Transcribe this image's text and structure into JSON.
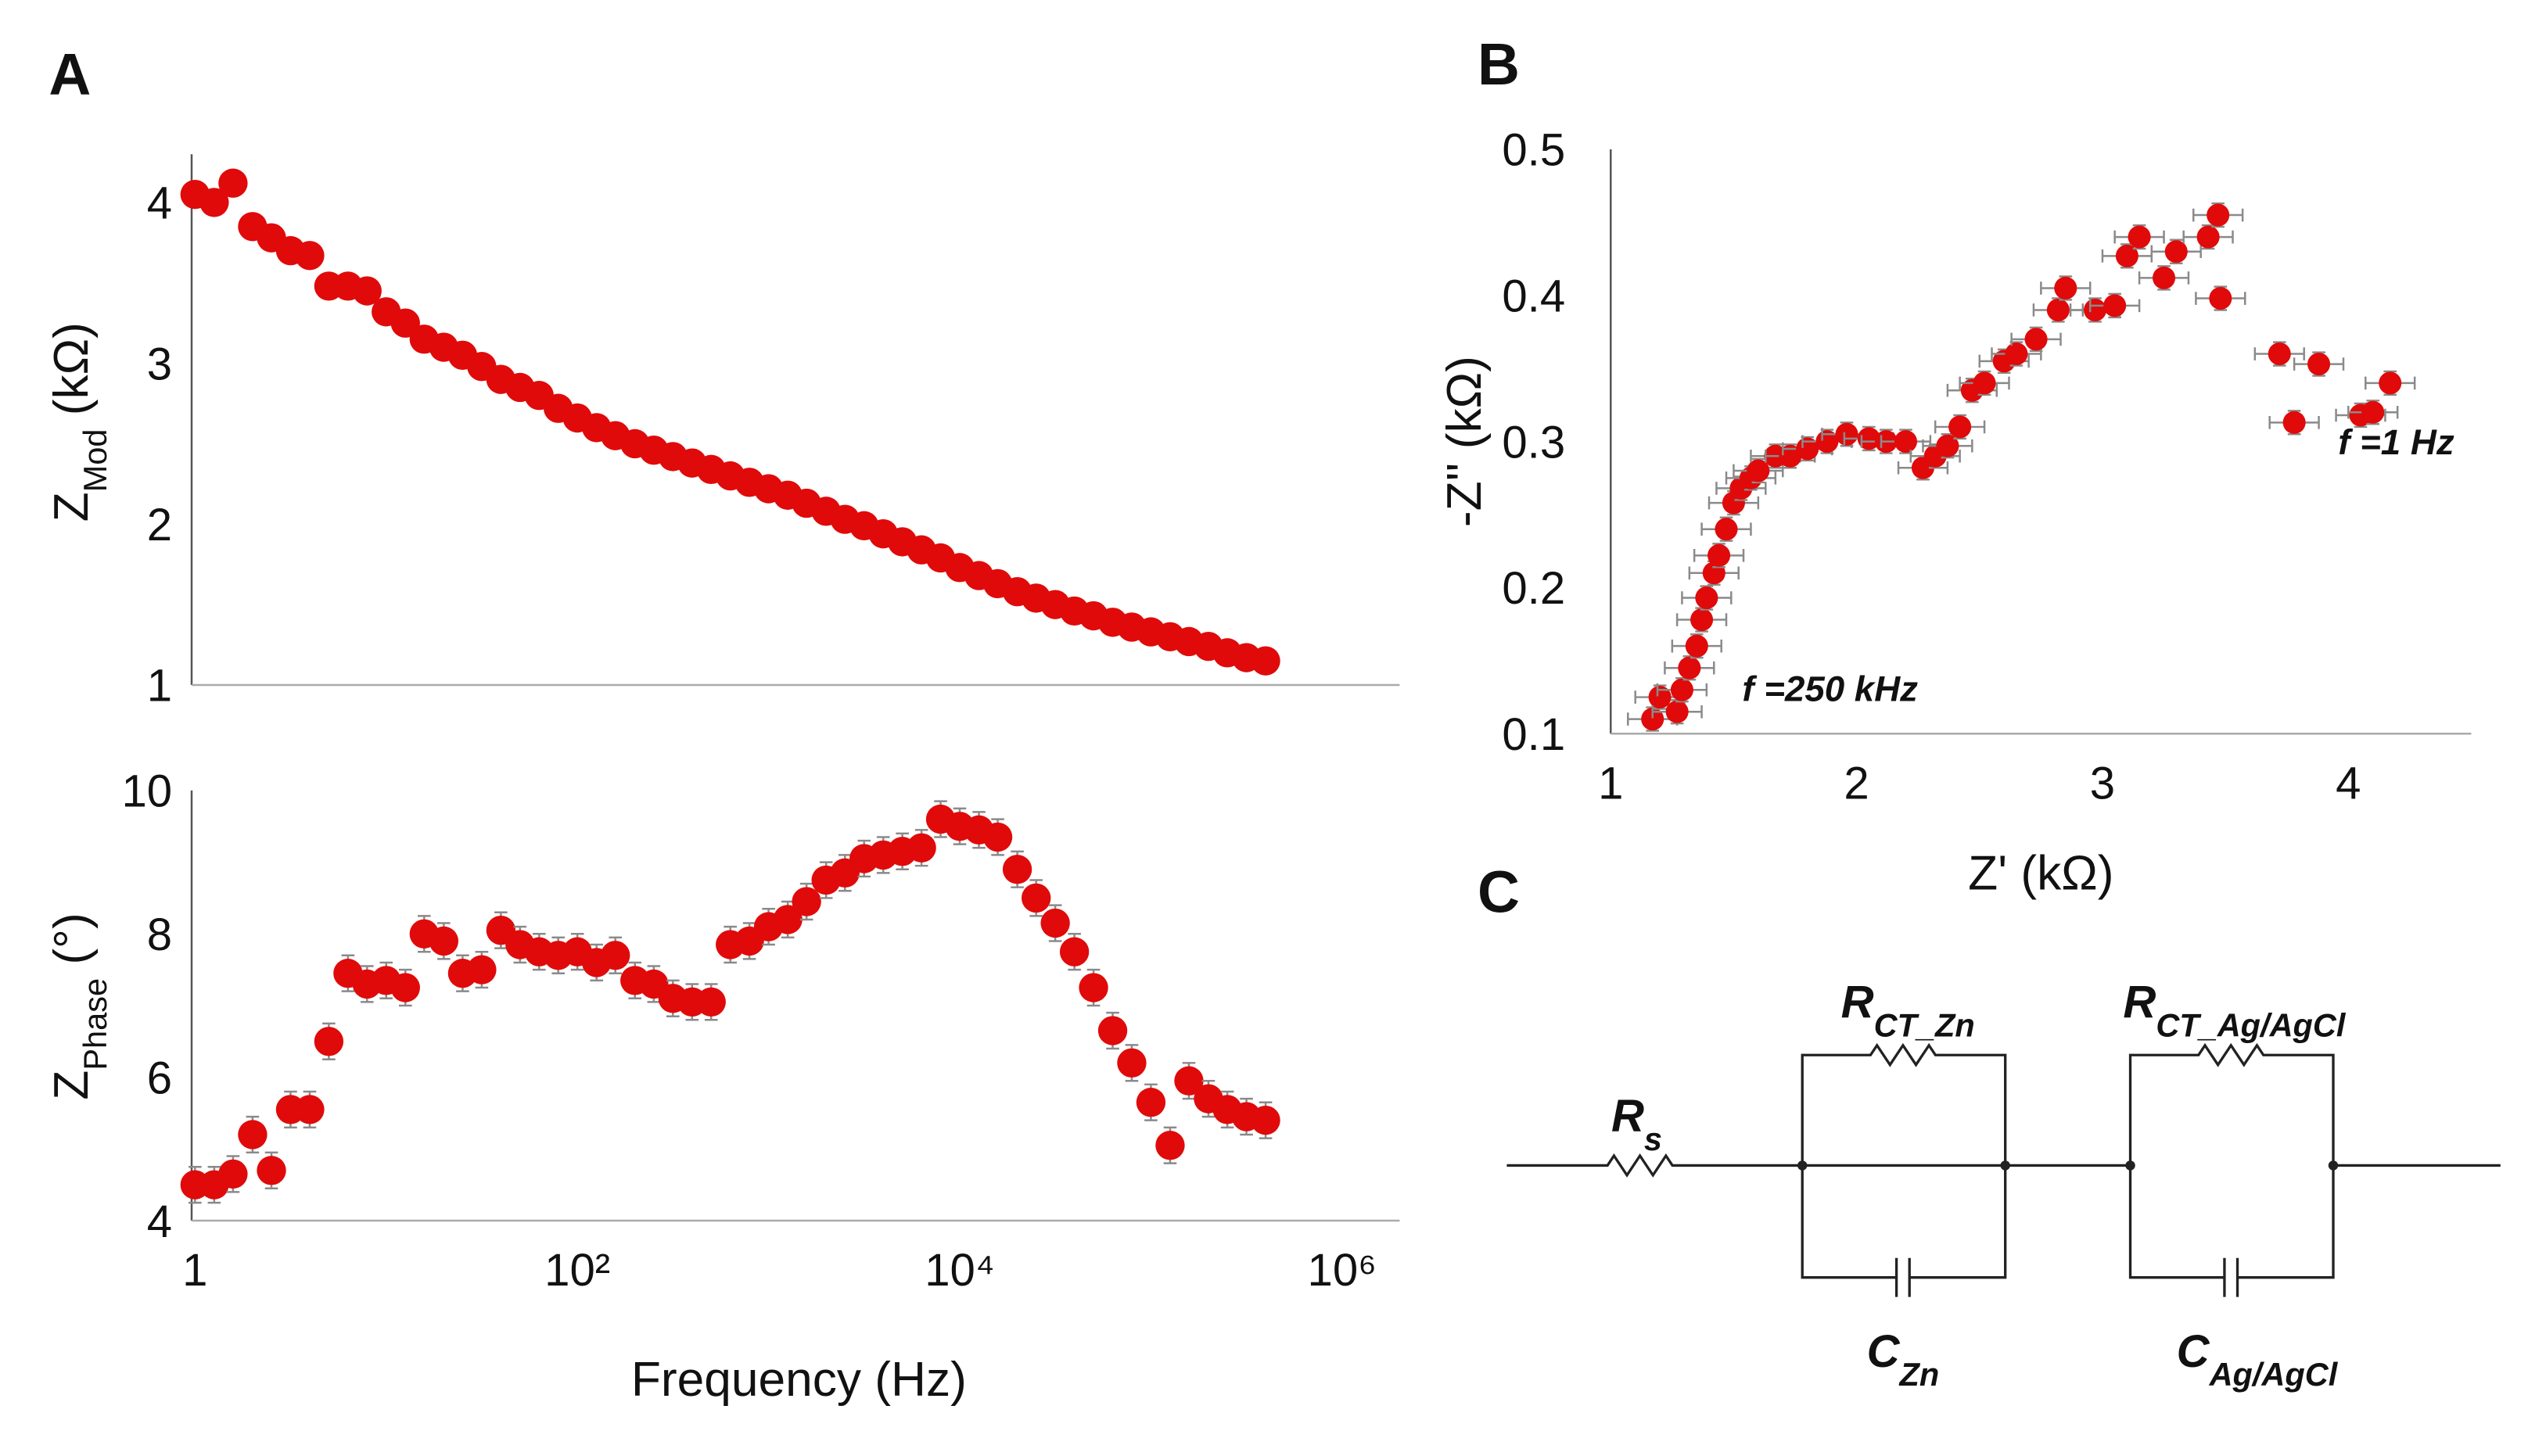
{
  "panels": [
    "A",
    "B",
    "C"
  ],
  "chart_data": [
    {
      "type": "scatter",
      "xscale": "log",
      "color": "#e00a0a",
      "ylabel": [
        "Z",
        "Mod",
        " (kΩ)"
      ],
      "x": [
        1,
        1.26,
        1.58,
        2,
        2.51,
        3.16,
        3.98,
        5.01,
        6.31,
        7.94,
        10,
        12.6,
        15.8,
        20,
        25.1,
        31.6,
        39.8,
        50.1,
        63.1,
        79.4,
        100,
        126,
        158,
        200,
        251,
        316,
        398,
        501,
        631,
        794,
        1000,
        1260,
        1580,
        2000,
        2510,
        3160,
        3980,
        5010,
        6310,
        7940,
        10000,
        12600,
        15800,
        20000,
        25100,
        31600,
        39800,
        50100,
        63100,
        79400,
        100000,
        126000,
        158000,
        200000,
        251000,
        316000,
        398000
      ],
      "values": [
        4.05,
        4.0,
        4.12,
        3.85,
        3.78,
        3.7,
        3.67,
        3.48,
        3.48,
        3.45,
        3.32,
        3.25,
        3.15,
        3.1,
        3.05,
        2.98,
        2.9,
        2.85,
        2.8,
        2.72,
        2.66,
        2.6,
        2.55,
        2.5,
        2.46,
        2.42,
        2.38,
        2.34,
        2.3,
        2.26,
        2.22,
        2.18,
        2.13,
        2.08,
        2.03,
        1.99,
        1.94,
        1.89,
        1.84,
        1.79,
        1.73,
        1.68,
        1.63,
        1.58,
        1.54,
        1.5,
        1.46,
        1.43,
        1.39,
        1.36,
        1.33,
        1.3,
        1.27,
        1.24,
        1.2,
        1.17,
        1.15
      ],
      "yerror": 0.05,
      "xlim": [
        0.96,
        2000000
      ],
      "ylim": [
        1,
        4.3
      ],
      "yticks": [
        1,
        2,
        3,
        4
      ]
    },
    {
      "type": "scatter",
      "xscale": "log",
      "color": "#e00a0a",
      "ylabel": [
        "Z",
        "Phase",
        " (°)"
      ],
      "xlabel": "Frequency (Hz)",
      "x": [
        1,
        1.26,
        1.58,
        2,
        2.51,
        3.16,
        3.98,
        5.01,
        6.31,
        7.94,
        10,
        12.6,
        15.8,
        20,
        25.1,
        31.6,
        39.8,
        50.1,
        63.1,
        79.4,
        100,
        126,
        158,
        200,
        251,
        316,
        398,
        501,
        631,
        794,
        1000,
        1260,
        1580,
        2000,
        2510,
        3160,
        3980,
        5010,
        6310,
        7940,
        10000,
        12600,
        15800,
        20000,
        25100,
        31600,
        39800,
        50100,
        63100,
        79400,
        100000,
        126000,
        158000,
        200000,
        251000,
        316000,
        398000
      ],
      "values": [
        4.5,
        4.5,
        4.65,
        5.2,
        4.7,
        5.55,
        5.55,
        6.5,
        7.45,
        7.3,
        7.35,
        7.25,
        8.0,
        7.9,
        7.45,
        7.5,
        8.05,
        7.85,
        7.75,
        7.7,
        7.75,
        7.6,
        7.7,
        7.35,
        7.3,
        7.1,
        7.05,
        7.05,
        7.85,
        7.9,
        8.1,
        8.2,
        8.45,
        8.75,
        8.85,
        9.05,
        9.1,
        9.15,
        9.2,
        9.6,
        9.5,
        9.45,
        9.35,
        8.9,
        8.5,
        8.15,
        7.75,
        7.25,
        6.65,
        6.2,
        5.65,
        5.05,
        5.95,
        5.7,
        5.55,
        5.45,
        5.4
      ],
      "yerror": 0.25,
      "xlim": [
        0.96,
        2000000
      ],
      "ylim": [
        4,
        10
      ],
      "yticks": [
        4,
        6,
        8,
        10
      ],
      "xticks": [
        1,
        {
          "value": 100,
          "label": "10²"
        },
        {
          "value": 10000,
          "label": "10⁴"
        },
        {
          "value": 1000000,
          "label": "10⁶"
        }
      ]
    },
    {
      "type": "scatter",
      "color": "#e00a0a",
      "ylabel": [
        "-Z'' (kΩ)"
      ],
      "xlabel": "Z' (kΩ)",
      "annotations": [
        "f =250 kHz",
        "f =1 Hz"
      ],
      "x": [
        1.17,
        1.2,
        1.27,
        1.29,
        1.32,
        1.35,
        1.37,
        1.39,
        1.42,
        1.44,
        1.47,
        1.5,
        1.53,
        1.57,
        1.6,
        1.67,
        1.73,
        1.8,
        1.88,
        1.96,
        2.05,
        2.12,
        2.2,
        2.27,
        2.32,
        2.37,
        2.42,
        2.47,
        2.52,
        2.6,
        2.65,
        2.73,
        2.82,
        2.85,
        2.97,
        3.05,
        3.1,
        3.15,
        3.25,
        3.3,
        3.43,
        3.47,
        3.48,
        3.72,
        3.88,
        3.78,
        4.05,
        4.1,
        4.17
      ],
      "values": [
        0.11,
        0.125,
        0.115,
        0.13,
        0.145,
        0.16,
        0.178,
        0.193,
        0.21,
        0.222,
        0.24,
        0.258,
        0.268,
        0.275,
        0.28,
        0.29,
        0.29,
        0.295,
        0.3,
        0.305,
        0.302,
        0.3,
        0.3,
        0.282,
        0.29,
        0.297,
        0.31,
        0.335,
        0.34,
        0.355,
        0.36,
        0.37,
        0.39,
        0.405,
        0.39,
        0.393,
        0.427,
        0.44,
        0.412,
        0.43,
        0.44,
        0.455,
        0.398,
        0.36,
        0.353,
        0.313,
        0.318,
        0.32,
        0.34
      ],
      "xerror": 0.1,
      "yerror": 0.008,
      "xlim": [
        1,
        4.5
      ],
      "ylim": [
        0.1,
        0.5
      ],
      "xticks": [
        1,
        2,
        3,
        4
      ],
      "yticks": [
        0.1,
        0.2,
        0.3,
        0.4,
        0.5
      ]
    }
  ],
  "circuit": {
    "elements": [
      [
        "R",
        "s"
      ],
      [
        "R",
        "CT_Zn"
      ],
      [
        "C",
        "Zn"
      ],
      [
        "R",
        "CT_Ag/AgCl"
      ],
      [
        "C",
        "Ag/AgCl"
      ]
    ]
  }
}
